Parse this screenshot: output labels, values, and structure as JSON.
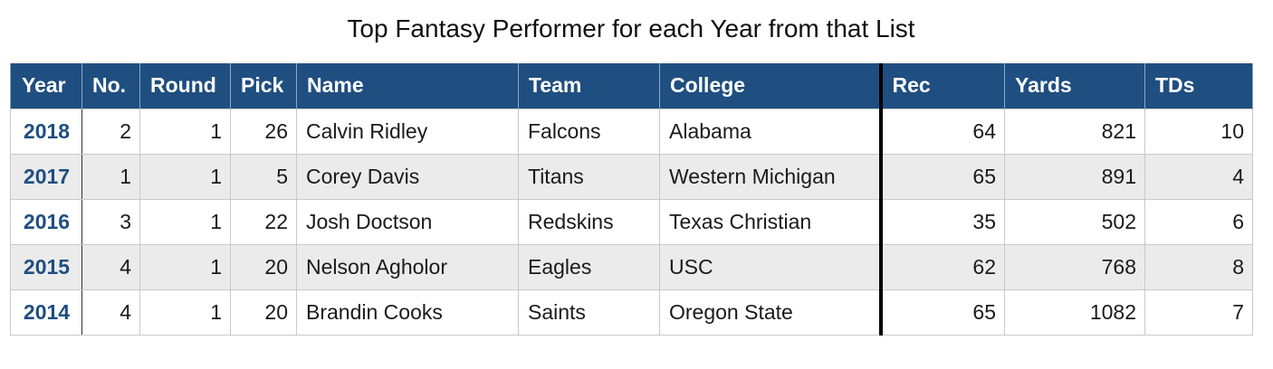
{
  "title": "Top Fantasy Performer for each Year from that List",
  "columns": [
    "Year",
    "No.",
    "Round",
    "Pick",
    "Name",
    "Team",
    "College",
    "Rec",
    "Yards",
    "TDs"
  ],
  "rows": [
    {
      "year": "2018",
      "no": "2",
      "round": "1",
      "pick": "26",
      "name": "Calvin Ridley",
      "team": "Falcons",
      "college": "Alabama",
      "rec": "64",
      "yards": "821",
      "tds": "10"
    },
    {
      "year": "2017",
      "no": "1",
      "round": "1",
      "pick": "5",
      "name": "Corey Davis",
      "team": "Titans",
      "college": "Western Michigan",
      "rec": "65",
      "yards": "891",
      "tds": "4"
    },
    {
      "year": "2016",
      "no": "3",
      "round": "1",
      "pick": "22",
      "name": "Josh Doctson",
      "team": "Redskins",
      "college": "Texas Christian",
      "rec": "35",
      "yards": "502",
      "tds": "6"
    },
    {
      "year": "2015",
      "no": "4",
      "round": "1",
      "pick": "20",
      "name": "Nelson Agholor",
      "team": "Eagles",
      "college": "USC",
      "rec": "62",
      "yards": "768",
      "tds": "8"
    },
    {
      "year": "2014",
      "no": "4",
      "round": "1",
      "pick": "20",
      "name": "Brandin Cooks",
      "team": "Saints",
      "college": "Oregon State",
      "rec": "65",
      "yards": "1082",
      "tds": "7"
    }
  ],
  "colors": {
    "header_bg": "#1f4e80",
    "header_text": "#ffffff",
    "year_text": "#1f4e80",
    "alt_row_bg": "#ebebeb"
  }
}
